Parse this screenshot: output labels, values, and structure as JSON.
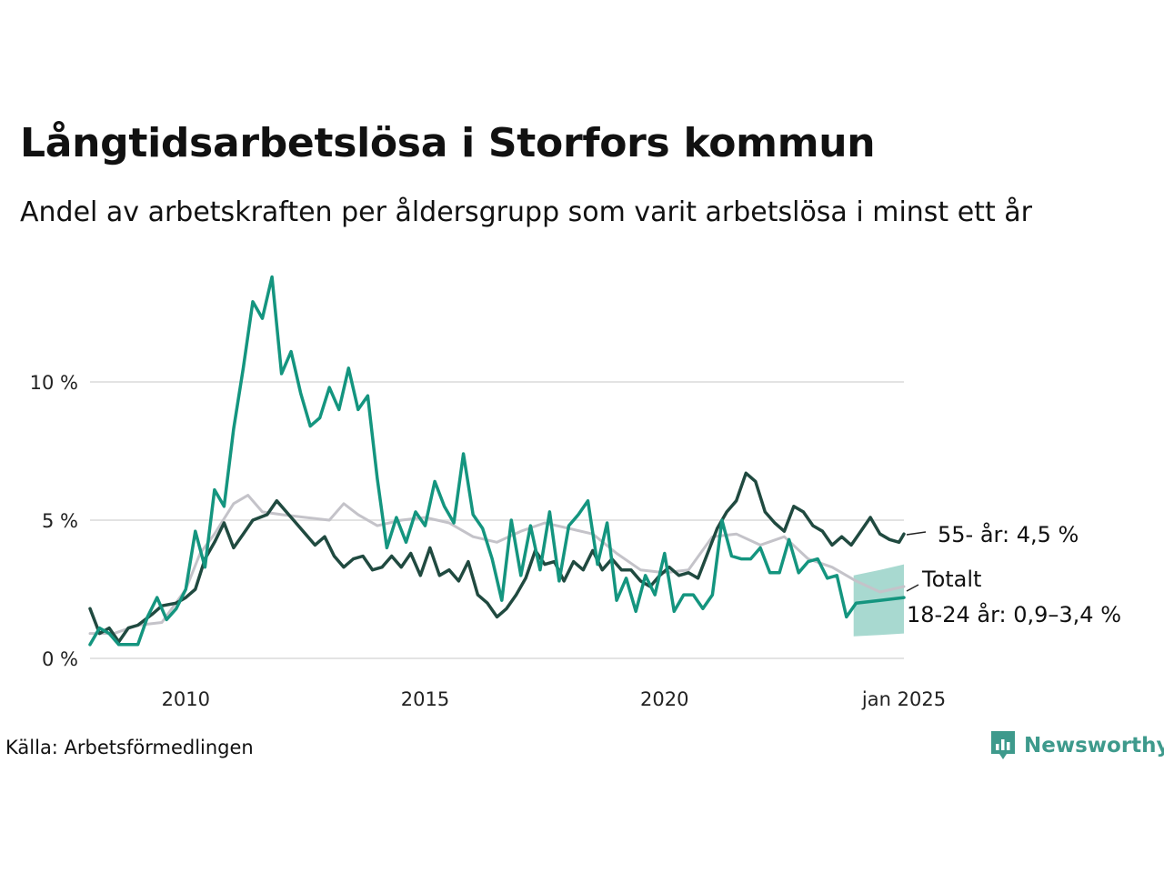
{
  "title": "Långtidsarbetslösa i Storfors kommun",
  "subtitle": "Andel av arbetskraften per åldersgrupp som varit arbetslösa i minst ett år",
  "source": "Källa: Arbetsförmedlingen",
  "brand": {
    "name": "Newsworthy",
    "icon": "newsworthy-logo-icon"
  },
  "colors": {
    "young": "#14957f",
    "old": "#204a40",
    "total": "#c4c3c9",
    "band": "#9fd5cb",
    "grid": "#e3e3e3"
  },
  "chart_data": {
    "type": "line",
    "title": "Långtidsarbetslösa i Storfors kommun",
    "xlabel": "",
    "ylabel": "",
    "xlim": [
      2008.0,
      2025.0
    ],
    "ylim": [
      0,
      14
    ],
    "y_ticks": [
      {
        "value": 0,
        "label": "0 %"
      },
      {
        "value": 5,
        "label": "5 %"
      },
      {
        "value": 10,
        "label": "10 %"
      }
    ],
    "x_ticks": [
      {
        "value": 2010,
        "label": "2010"
      },
      {
        "value": 2015,
        "label": "2015"
      },
      {
        "value": 2020,
        "label": "2020"
      },
      {
        "value": 2025,
        "label": "jan 2025"
      }
    ],
    "series": [
      {
        "name": "Totalt",
        "label": "Totalt",
        "points": [
          [
            2008.0,
            0.9
          ],
          [
            2008.5,
            0.9
          ],
          [
            2009.0,
            1.2
          ],
          [
            2009.5,
            1.3
          ],
          [
            2010.0,
            2.5
          ],
          [
            2010.3,
            3.8
          ],
          [
            2010.6,
            4.5
          ],
          [
            2011.0,
            5.6
          ],
          [
            2011.3,
            5.9
          ],
          [
            2011.6,
            5.3
          ],
          [
            2012.0,
            5.2
          ],
          [
            2012.5,
            5.1
          ],
          [
            2013.0,
            5.0
          ],
          [
            2013.3,
            5.6
          ],
          [
            2013.6,
            5.2
          ],
          [
            2014.0,
            4.8
          ],
          [
            2014.5,
            5.0
          ],
          [
            2015.0,
            5.1
          ],
          [
            2015.5,
            4.9
          ],
          [
            2016.0,
            4.4
          ],
          [
            2016.5,
            4.2
          ],
          [
            2017.0,
            4.6
          ],
          [
            2017.5,
            4.9
          ],
          [
            2018.0,
            4.7
          ],
          [
            2018.5,
            4.5
          ],
          [
            2019.0,
            3.8
          ],
          [
            2019.5,
            3.2
          ],
          [
            2020.0,
            3.1
          ],
          [
            2020.5,
            3.2
          ],
          [
            2021.0,
            4.4
          ],
          [
            2021.5,
            4.5
          ],
          [
            2022.0,
            4.1
          ],
          [
            2022.5,
            4.4
          ],
          [
            2023.0,
            3.6
          ],
          [
            2023.5,
            3.3
          ],
          [
            2024.0,
            2.8
          ],
          [
            2024.5,
            2.4
          ],
          [
            2025.0,
            2.6
          ]
        ]
      },
      {
        "name": "55- år",
        "label": "55- år: 4,5 %",
        "points": [
          [
            2008.0,
            1.8
          ],
          [
            2008.2,
            0.9
          ],
          [
            2008.4,
            1.1
          ],
          [
            2008.6,
            0.6
          ],
          [
            2008.8,
            1.1
          ],
          [
            2009.0,
            1.2
          ],
          [
            2009.3,
            1.6
          ],
          [
            2009.5,
            1.9
          ],
          [
            2009.8,
            2.0
          ],
          [
            2010.0,
            2.2
          ],
          [
            2010.2,
            2.5
          ],
          [
            2010.4,
            3.6
          ],
          [
            2010.6,
            4.2
          ],
          [
            2010.8,
            4.9
          ],
          [
            2011.0,
            4.0
          ],
          [
            2011.2,
            4.5
          ],
          [
            2011.4,
            5.0
          ],
          [
            2011.7,
            5.2
          ],
          [
            2011.9,
            5.7
          ],
          [
            2012.1,
            5.3
          ],
          [
            2012.3,
            4.9
          ],
          [
            2012.5,
            4.5
          ],
          [
            2012.7,
            4.1
          ],
          [
            2012.9,
            4.4
          ],
          [
            2013.1,
            3.7
          ],
          [
            2013.3,
            3.3
          ],
          [
            2013.5,
            3.6
          ],
          [
            2013.7,
            3.7
          ],
          [
            2013.9,
            3.2
          ],
          [
            2014.1,
            3.3
          ],
          [
            2014.3,
            3.7
          ],
          [
            2014.5,
            3.3
          ],
          [
            2014.7,
            3.8
          ],
          [
            2014.9,
            3.0
          ],
          [
            2015.1,
            4.0
          ],
          [
            2015.3,
            3.0
          ],
          [
            2015.5,
            3.2
          ],
          [
            2015.7,
            2.8
          ],
          [
            2015.9,
            3.5
          ],
          [
            2016.1,
            2.3
          ],
          [
            2016.3,
            2.0
          ],
          [
            2016.5,
            1.5
          ],
          [
            2016.7,
            1.8
          ],
          [
            2016.9,
            2.3
          ],
          [
            2017.1,
            2.9
          ],
          [
            2017.3,
            3.9
          ],
          [
            2017.5,
            3.4
          ],
          [
            2017.7,
            3.5
          ],
          [
            2017.9,
            2.8
          ],
          [
            2018.1,
            3.5
          ],
          [
            2018.3,
            3.2
          ],
          [
            2018.5,
            3.9
          ],
          [
            2018.7,
            3.2
          ],
          [
            2018.9,
            3.6
          ],
          [
            2019.1,
            3.2
          ],
          [
            2019.3,
            3.2
          ],
          [
            2019.5,
            2.8
          ],
          [
            2019.7,
            2.6
          ],
          [
            2019.9,
            3.0
          ],
          [
            2020.1,
            3.3
          ],
          [
            2020.3,
            3.0
          ],
          [
            2020.5,
            3.1
          ],
          [
            2020.7,
            2.9
          ],
          [
            2020.9,
            3.8
          ],
          [
            2021.1,
            4.7
          ],
          [
            2021.3,
            5.3
          ],
          [
            2021.5,
            5.7
          ],
          [
            2021.7,
            6.7
          ],
          [
            2021.9,
            6.4
          ],
          [
            2022.1,
            5.3
          ],
          [
            2022.3,
            4.9
          ],
          [
            2022.5,
            4.6
          ],
          [
            2022.7,
            5.5
          ],
          [
            2022.9,
            5.3
          ],
          [
            2023.1,
            4.8
          ],
          [
            2023.3,
            4.6
          ],
          [
            2023.5,
            4.1
          ],
          [
            2023.7,
            4.4
          ],
          [
            2023.9,
            4.1
          ],
          [
            2024.1,
            4.6
          ],
          [
            2024.3,
            5.1
          ],
          [
            2024.5,
            4.5
          ],
          [
            2024.7,
            4.3
          ],
          [
            2024.9,
            4.2
          ],
          [
            2025.0,
            4.5
          ]
        ]
      },
      {
        "name": "18-24 år",
        "label": "18-24 år: 0,9–3,4 %",
        "points": [
          [
            2008.0,
            0.5
          ],
          [
            2008.2,
            1.1
          ],
          [
            2008.4,
            0.9
          ],
          [
            2008.6,
            0.5
          ],
          [
            2008.8,
            0.5
          ],
          [
            2009.0,
            0.5
          ],
          [
            2009.2,
            1.5
          ],
          [
            2009.4,
            2.2
          ],
          [
            2009.6,
            1.4
          ],
          [
            2009.8,
            1.8
          ],
          [
            2010.0,
            2.5
          ],
          [
            2010.2,
            4.6
          ],
          [
            2010.4,
            3.3
          ],
          [
            2010.6,
            6.1
          ],
          [
            2010.8,
            5.5
          ],
          [
            2011.0,
            8.3
          ],
          [
            2011.2,
            10.5
          ],
          [
            2011.4,
            12.9
          ],
          [
            2011.6,
            12.3
          ],
          [
            2011.8,
            13.8
          ],
          [
            2012.0,
            10.3
          ],
          [
            2012.2,
            11.1
          ],
          [
            2012.4,
            9.6
          ],
          [
            2012.6,
            8.4
          ],
          [
            2012.8,
            8.7
          ],
          [
            2013.0,
            9.8
          ],
          [
            2013.2,
            9.0
          ],
          [
            2013.4,
            10.5
          ],
          [
            2013.6,
            9.0
          ],
          [
            2013.8,
            9.5
          ],
          [
            2014.0,
            6.5
          ],
          [
            2014.2,
            4.0
          ],
          [
            2014.4,
            5.1
          ],
          [
            2014.6,
            4.2
          ],
          [
            2014.8,
            5.3
          ],
          [
            2015.0,
            4.8
          ],
          [
            2015.2,
            6.4
          ],
          [
            2015.4,
            5.5
          ],
          [
            2015.6,
            4.9
          ],
          [
            2015.8,
            7.4
          ],
          [
            2016.0,
            5.2
          ],
          [
            2016.2,
            4.7
          ],
          [
            2016.4,
            3.6
          ],
          [
            2016.6,
            2.1
          ],
          [
            2016.8,
            5.0
          ],
          [
            2017.0,
            3.0
          ],
          [
            2017.2,
            4.8
          ],
          [
            2017.4,
            3.2
          ],
          [
            2017.6,
            5.3
          ],
          [
            2017.8,
            2.8
          ],
          [
            2018.0,
            4.8
          ],
          [
            2018.2,
            5.2
          ],
          [
            2018.4,
            5.7
          ],
          [
            2018.6,
            3.4
          ],
          [
            2018.8,
            4.9
          ],
          [
            2019.0,
            2.1
          ],
          [
            2019.2,
            2.9
          ],
          [
            2019.4,
            1.7
          ],
          [
            2019.6,
            3.0
          ],
          [
            2019.8,
            2.3
          ],
          [
            2020.0,
            3.8
          ],
          [
            2020.2,
            1.7
          ],
          [
            2020.4,
            2.3
          ],
          [
            2020.6,
            2.3
          ],
          [
            2020.8,
            1.8
          ],
          [
            2021.0,
            2.3
          ],
          [
            2021.2,
            5.0
          ],
          [
            2021.4,
            3.7
          ],
          [
            2021.6,
            3.6
          ],
          [
            2021.8,
            3.6
          ],
          [
            2022.0,
            4.0
          ],
          [
            2022.2,
            3.1
          ],
          [
            2022.4,
            3.1
          ],
          [
            2022.6,
            4.3
          ],
          [
            2022.8,
            3.1
          ],
          [
            2023.0,
            3.5
          ],
          [
            2023.2,
            3.6
          ],
          [
            2023.4,
            2.9
          ],
          [
            2023.6,
            3.0
          ],
          [
            2023.8,
            1.5
          ],
          [
            2024.0,
            2.0
          ],
          [
            2024.5,
            2.1
          ],
          [
            2025.0,
            2.2
          ]
        ]
      }
    ],
    "forecast_band": {
      "series": "18-24 år",
      "points": [
        [
          2023.95,
          0.8,
          3.0
        ],
        [
          2024.5,
          0.85,
          3.2
        ],
        [
          2025.0,
          0.9,
          3.4
        ]
      ]
    }
  }
}
